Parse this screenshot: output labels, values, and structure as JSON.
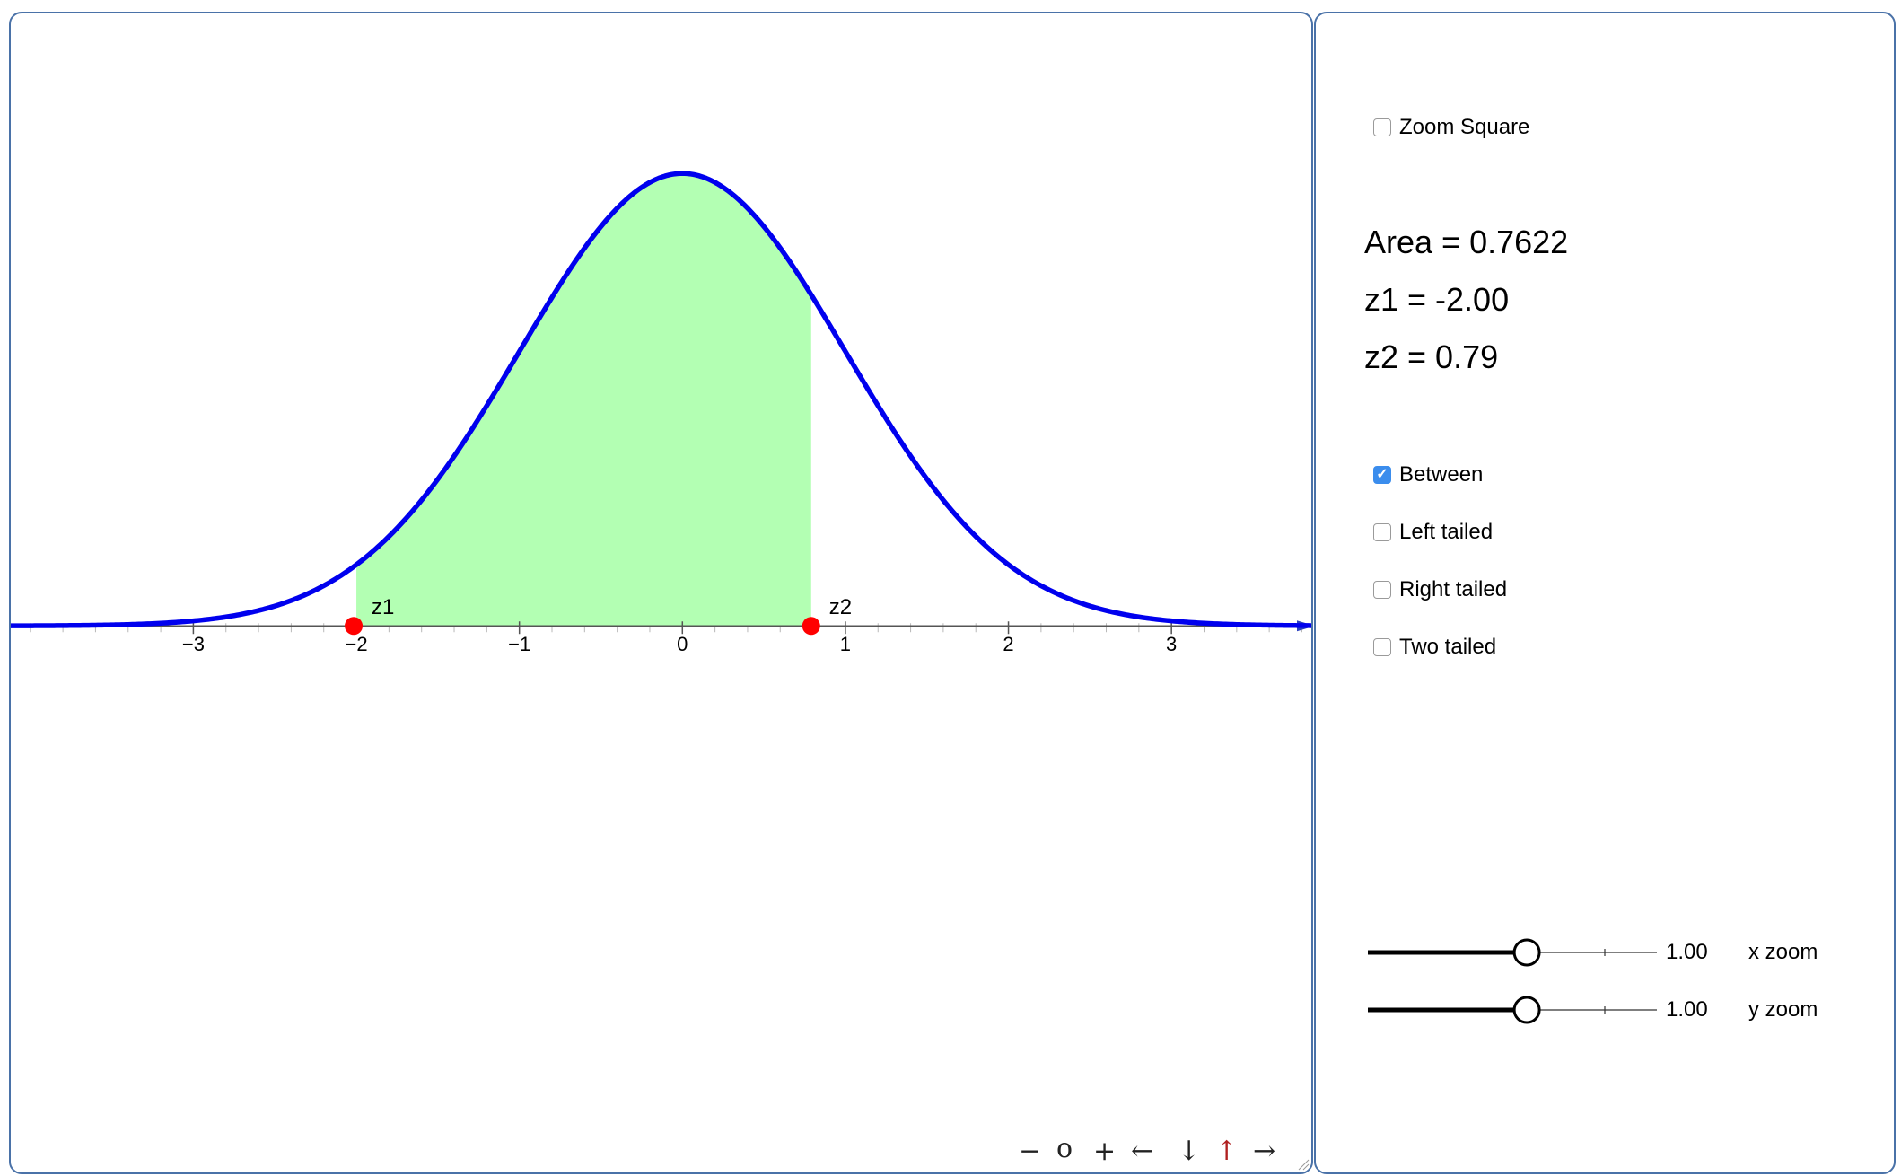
{
  "graph": {
    "chart_data": {
      "type": "area",
      "function": "standard normal density",
      "xlim": [
        -4.12,
        3.88
      ],
      "ylim": [
        -0.485,
        0.54
      ],
      "x_ticks": [
        "−3",
        "−2",
        "−1",
        "0",
        "1",
        "2",
        "3"
      ],
      "shade_from": -2.0,
      "shade_to": 0.79,
      "points": [
        {
          "label": "z1",
          "x": -2.0
        },
        {
          "label": "z2",
          "x": 0.79
        }
      ],
      "colors": {
        "curve": "#0000ee",
        "fill": "#b3ffb3",
        "points": "#ff0000",
        "axis": "#555555"
      }
    },
    "nav": {
      "zoom_out": "−",
      "reset": "o",
      "zoom_in": "+",
      "left": "←",
      "down": "↓",
      "up": "↑",
      "right": "→"
    }
  },
  "controls": {
    "zoom_square": {
      "label": "Zoom Square",
      "checked": false
    },
    "readouts": {
      "area": "Area = 0.7622",
      "z1": "z1 = -2.00",
      "z2": "z2 = 0.79"
    },
    "modes": [
      {
        "label": "Between",
        "checked": true
      },
      {
        "label": "Left tailed",
        "checked": false
      },
      {
        "label": "Right tailed",
        "checked": false
      },
      {
        "label": "Two tailed",
        "checked": false
      }
    ],
    "sliders": [
      {
        "value_text": "1.00",
        "label": "x zoom",
        "fraction": 0.55
      },
      {
        "value_text": "1.00",
        "label": "y zoom",
        "fraction": 0.55
      }
    ],
    "accent_color": "#3b8ded"
  }
}
